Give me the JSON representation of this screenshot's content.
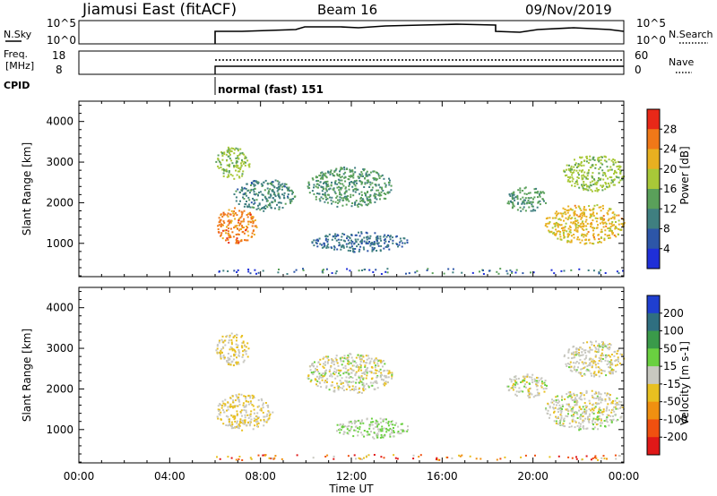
{
  "header": {
    "station": "Jiamusi East (fitACF)",
    "beam": "Beam 16",
    "date": "09/Nov/2019"
  },
  "panels": {
    "nsky": {
      "label": "N.Sky",
      "right_label": "N.Search",
      "left_ticks": [
        "10^5",
        "10^0"
      ],
      "right_ticks": [
        "10^5",
        "10^0"
      ]
    },
    "freq": {
      "label_line1": "Freq.",
      "label_line2": "[MHz]",
      "right_label": "Nave",
      "left_ticks": [
        "18",
        "8"
      ],
      "right_ticks": [
        "60",
        "0"
      ]
    },
    "cpid": {
      "label": "CPID",
      "mode": "normal (fast) 151"
    }
  },
  "x_axis": {
    "label": "Time UT",
    "ticks": [
      "00:00",
      "04:00",
      "08:00",
      "12:00",
      "16:00",
      "20:00",
      "00:00"
    ]
  },
  "power_colorbar": {
    "label": "Power [dB]",
    "ticks": [
      "4",
      "8",
      "12",
      "16",
      "20",
      "24",
      "28"
    ],
    "colors": [
      "#1f2fd8",
      "#2d56a8",
      "#3f7f80",
      "#5aa05a",
      "#a8c838",
      "#e8b020",
      "#f07818",
      "#e82818"
    ]
  },
  "velocity_colorbar": {
    "label": "Velocity [m s-1]",
    "ticks": [
      "200",
      "100",
      "50",
      "15",
      "-15",
      "-50",
      "-100",
      "-200"
    ],
    "colors": [
      "#1f3fd0",
      "#2f6f80",
      "#3a9a4a",
      "#6ad040",
      "#c8c8c0",
      "#e8c020",
      "#f09010",
      "#f05010",
      "#e01818"
    ]
  },
  "chart_data": [
    {
      "type": "heatmap",
      "title": "Power",
      "ylabel": "Slant Range [km]",
      "xlabel": "",
      "x_range_hours": [
        0,
        24
      ],
      "ylim": [
        180,
        4500
      ],
      "y_ticks": [
        1000,
        2000,
        3000,
        4000
      ],
      "colorbar_label": "Power [dB]",
      "colorbar_range": [
        0,
        30
      ],
      "echo_regions": [
        {
          "t": [
            6.0,
            7.8
          ],
          "r": [
            1000,
            1900
          ],
          "value": 24
        },
        {
          "t": [
            6.0,
            7.5
          ],
          "r": [
            2600,
            3400
          ],
          "value": 16
        },
        {
          "t": [
            6.8,
            9.5
          ],
          "r": [
            1800,
            2600
          ],
          "value": 10
        },
        {
          "t": [
            10.0,
            13.8
          ],
          "r": [
            1900,
            2900
          ],
          "value": 12
        },
        {
          "t": [
            10.2,
            14.5
          ],
          "r": [
            800,
            1300
          ],
          "value": 8
        },
        {
          "t": [
            18.8,
            20.6
          ],
          "r": [
            1800,
            2400
          ],
          "value": 12
        },
        {
          "t": [
            20.5,
            24.0
          ],
          "r": [
            1000,
            2000
          ],
          "value": 20
        },
        {
          "t": [
            21.3,
            24.0
          ],
          "r": [
            2300,
            3200
          ],
          "value": 16
        }
      ]
    },
    {
      "type": "heatmap",
      "title": "Velocity",
      "ylabel": "Slant Range [km]",
      "xlabel": "Time UT",
      "x_range_hours": [
        0,
        24
      ],
      "ylim": [
        180,
        4500
      ],
      "y_ticks": [
        1000,
        2000,
        3000,
        4000
      ],
      "colorbar_label": "Velocity [m s-1]",
      "colorbar_range": [
        -250,
        250
      ],
      "echo_regions": [
        {
          "t": [
            6.0,
            8.5
          ],
          "r": [
            1000,
            1900
          ],
          "value": -25
        },
        {
          "t": [
            6.0,
            7.5
          ],
          "r": [
            2600,
            3400
          ],
          "value": -30
        },
        {
          "t": [
            10.0,
            13.8
          ],
          "r": [
            1900,
            2900
          ],
          "value": -5
        },
        {
          "t": [
            11.2,
            14.5
          ],
          "r": [
            800,
            1300
          ],
          "value": 35
        },
        {
          "t": [
            18.8,
            20.6
          ],
          "r": [
            1800,
            2400
          ],
          "value": 0
        },
        {
          "t": [
            20.5,
            24.0
          ],
          "r": [
            1000,
            2000
          ],
          "value": -5
        },
        {
          "t": [
            21.3,
            24.0
          ],
          "r": [
            2300,
            3200
          ],
          "value": -10
        }
      ]
    }
  ]
}
